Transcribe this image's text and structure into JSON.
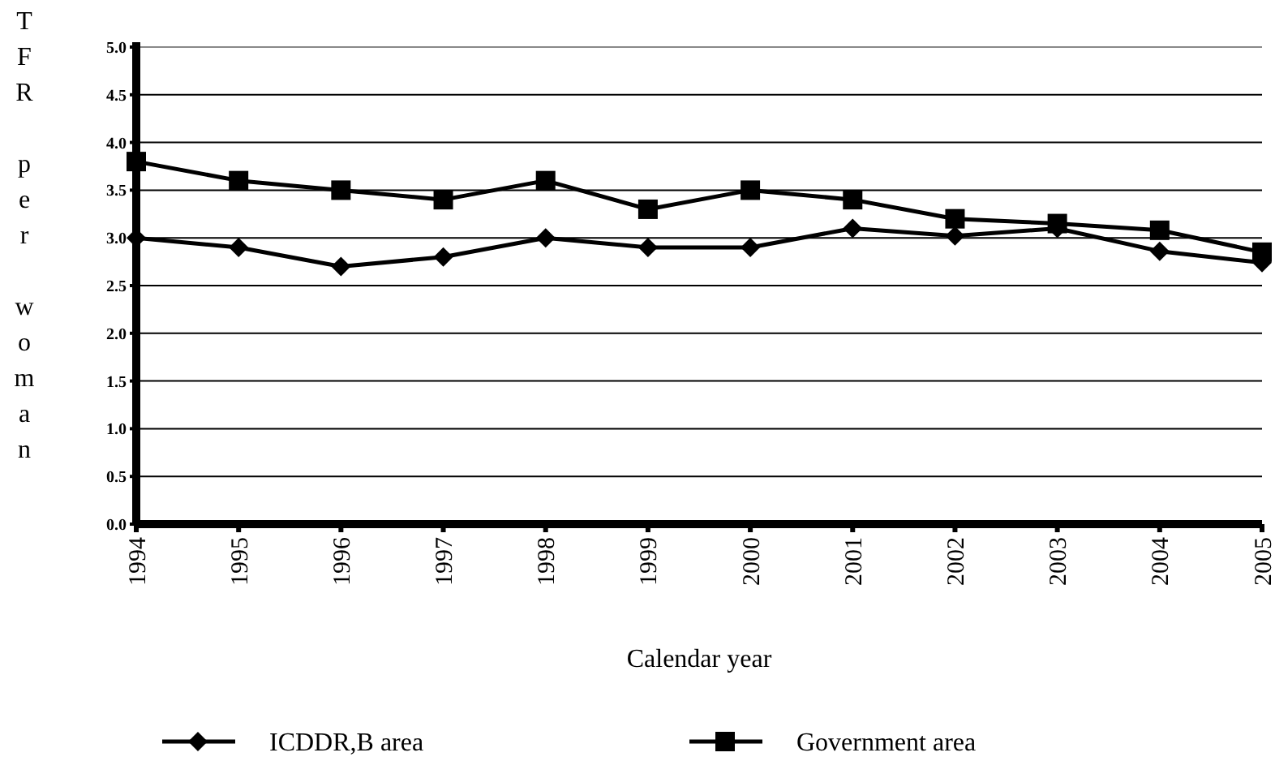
{
  "chart_data": {
    "type": "line",
    "xlabel": "Calendar year",
    "ylabel": "TFR per woman",
    "categories": [
      "1994",
      "1995",
      "1996",
      "1997",
      "1998",
      "1999",
      "2000",
      "2001",
      "2002",
      "2003",
      "2004",
      "2005"
    ],
    "series": [
      {
        "name": "ICDDR,B area",
        "color": "#000000",
        "marker": "diamond",
        "values": [
          3.0,
          2.9,
          2.7,
          2.8,
          3.0,
          2.9,
          2.9,
          3.1,
          3.02,
          3.1,
          2.86,
          2.74
        ]
      },
      {
        "name": "Government area",
        "color": "#000000",
        "marker": "square",
        "values": [
          3.8,
          3.6,
          3.5,
          3.4,
          3.6,
          3.3,
          3.5,
          3.4,
          3.2,
          3.15,
          3.08,
          2.85
        ]
      }
    ],
    "ylim": [
      0,
      5
    ],
    "yticks": [
      {
        "value": 0,
        "label": "0.0"
      },
      {
        "value": 0.5,
        "label": "0.5"
      },
      {
        "value": 1,
        "label": "1.0"
      },
      {
        "value": 1.5,
        "label": "1.5"
      },
      {
        "value": 2,
        "label": "2.0"
      },
      {
        "value": 2.5,
        "label": "2.5"
      },
      {
        "value": 3,
        "label": "3.0"
      },
      {
        "value": 3.5,
        "label": "3.5"
      },
      {
        "value": 4,
        "label": "4.0"
      },
      {
        "value": 4.5,
        "label": "4.5"
      },
      {
        "value": 5,
        "label": "5.0"
      }
    ],
    "grid": "y",
    "legend": "bottom",
    "line_style": "solid"
  }
}
